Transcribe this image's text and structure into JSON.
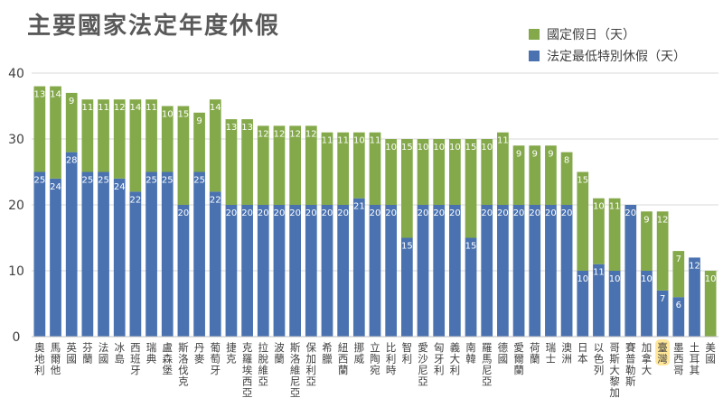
{
  "chart_data": {
    "type": "bar",
    "stacked": true,
    "title": "主要國家法定年度休假",
    "xlabel": "",
    "ylabel": "",
    "ylim": [
      0,
      40
    ],
    "yticks": [
      "0",
      "10",
      "20",
      "30",
      "40"
    ],
    "grid": true,
    "legend_position": "top-right",
    "categories": [
      "奧地利",
      "馬爾他",
      "英國",
      "芬蘭",
      "法國",
      "冰島",
      "西班牙",
      "瑞典",
      "盧森堡",
      "斯洛伐克",
      "丹麥",
      "葡萄牙",
      "捷克",
      "克羅埃西亞",
      "拉脫維亞",
      "波蘭",
      "斯洛維尼亞",
      "保加利亞",
      "希臘",
      "紐西蘭",
      "挪威",
      "立陶宛",
      "比利時",
      "智利",
      "愛沙尼亞",
      "匈牙利",
      "義大利",
      "南韓",
      "羅馬尼亞",
      "德國",
      "愛爾蘭",
      "荷蘭",
      "瑞士",
      "澳洲",
      "日本",
      "以色列",
      "哥斯大黎加",
      "賽普勒斯",
      "加拿大",
      "臺灣",
      "墨西哥",
      "土耳其",
      "美國"
    ],
    "highlight_category": "臺灣",
    "highlight_color": "#ffe699",
    "series": [
      {
        "name": "法定最低特別休假（天）",
        "color": "#4a72b0",
        "values": [
          25,
          24,
          28,
          25,
          25,
          24,
          22,
          25,
          25,
          20,
          25,
          22,
          20,
          20,
          20,
          20,
          20,
          20,
          20,
          20,
          21,
          20,
          20,
          15,
          20,
          20,
          20,
          15,
          20,
          20,
          20,
          20,
          20,
          20,
          10,
          11,
          10,
          20,
          10,
          7,
          6,
          12,
          0
        ]
      },
      {
        "name": "國定假日（天）",
        "color": "#84a94a",
        "values": [
          13,
          14,
          9,
          11,
          11,
          12,
          14,
          11,
          10,
          15,
          9,
          14,
          13,
          13,
          12,
          12,
          12,
          12,
          11,
          11,
          10,
          11,
          10,
          15,
          10,
          10,
          10,
          15,
          10,
          11,
          9,
          9,
          9,
          8,
          15,
          10,
          11,
          0,
          9,
          12,
          7,
          0,
          10
        ]
      }
    ]
  }
}
